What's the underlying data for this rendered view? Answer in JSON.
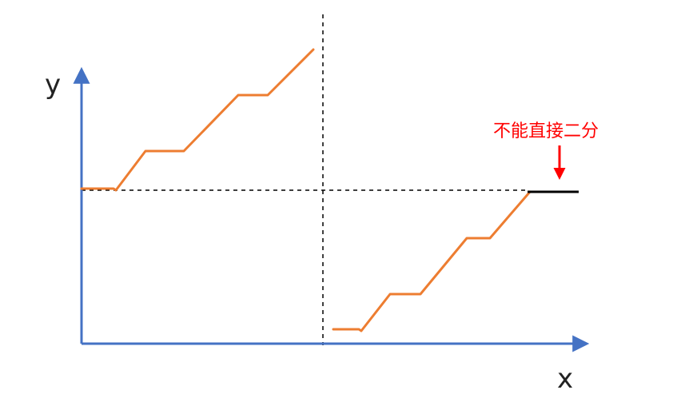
{
  "axes": {
    "x_label": "x",
    "y_label": "y"
  },
  "annotation": {
    "text": "不能直接二分"
  },
  "colors": {
    "axis": "#4472c4",
    "curve": "#ed7d31",
    "annotation": "#ff0000",
    "flat_segment": "#000000",
    "guide": "#000000"
  }
}
